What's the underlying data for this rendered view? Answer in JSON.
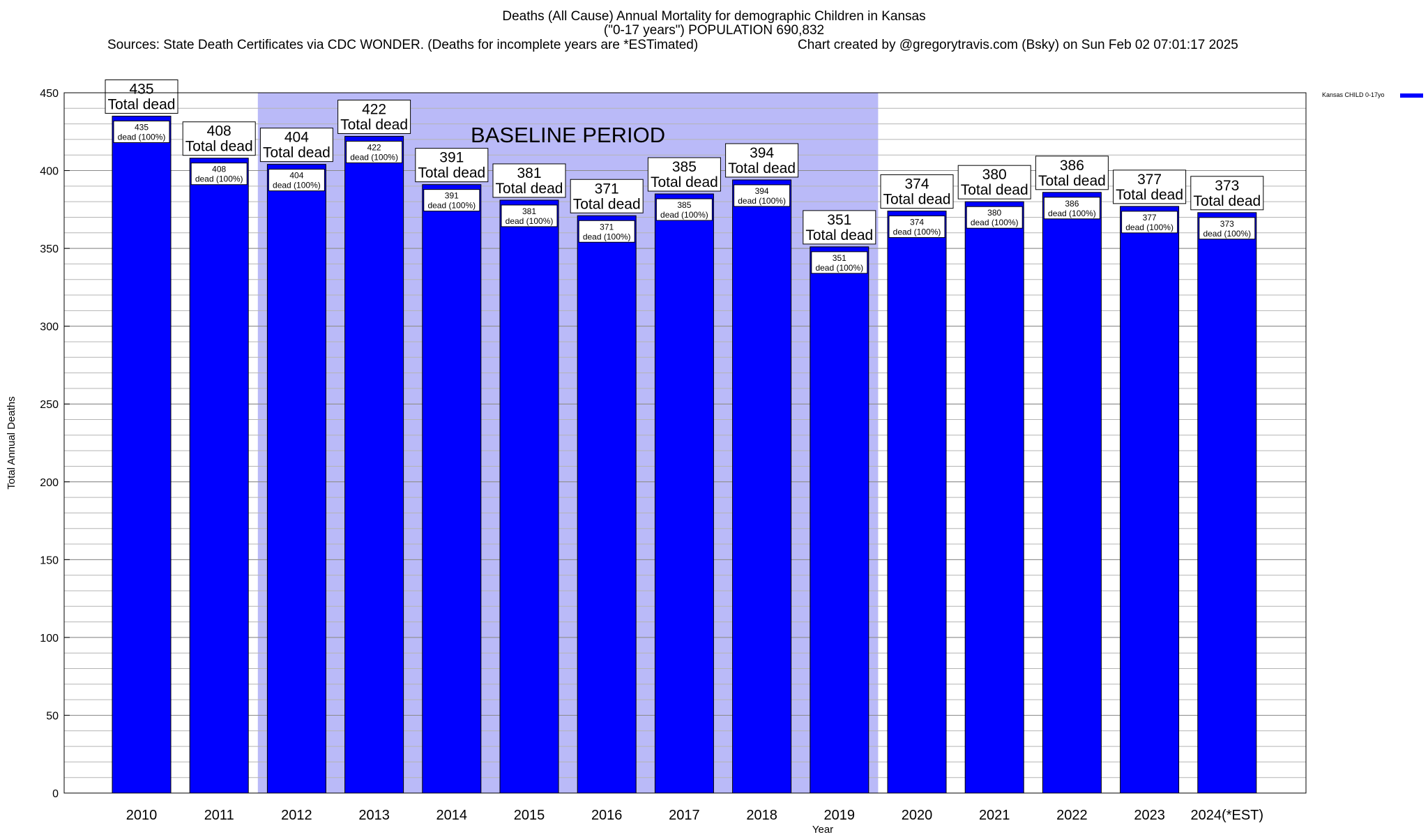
{
  "header": {
    "title_line1": "Deaths (All Cause) Annual Mortality for demographic Children in Kansas",
    "title_line2": "(\"0-17 years\") POPULATION 690,832",
    "sources": "Sources: State Death Certificates via CDC WONDER. (Deaths for incomplete years are *ESTimated)",
    "credit": "Chart created by @gregorytravis.com (Bsky) on Sun Feb 02 07:01:17 2025"
  },
  "chart_data": {
    "type": "bar",
    "categories": [
      "2010",
      "2011",
      "2012",
      "2013",
      "2014",
      "2015",
      "2016",
      "2017",
      "2018",
      "2019",
      "2020",
      "2021",
      "2022",
      "2023",
      "2024(*EST)"
    ],
    "series": [
      {
        "name": "Kansas CHILD 0-17yo",
        "values": [
          435,
          408,
          404,
          422,
          391,
          381,
          371,
          385,
          394,
          351,
          374,
          380,
          386,
          377,
          373
        ],
        "color": "#0000ff"
      }
    ],
    "xlabel": "Year",
    "ylabel": "Total Annual Deaths",
    "ylim": [
      0,
      450
    ],
    "yticks": [
      0,
      50,
      100,
      150,
      200,
      250,
      300,
      350,
      400,
      450
    ],
    "minor_step": 10,
    "grid": true,
    "legend_position": "top-right",
    "total_label_text": "Total dead",
    "inner_label_text": "dead (100%)",
    "baseline": {
      "label": "BASELINE PERIOD",
      "from": "2012",
      "to": "2019",
      "color": "#babaf8"
    }
  }
}
